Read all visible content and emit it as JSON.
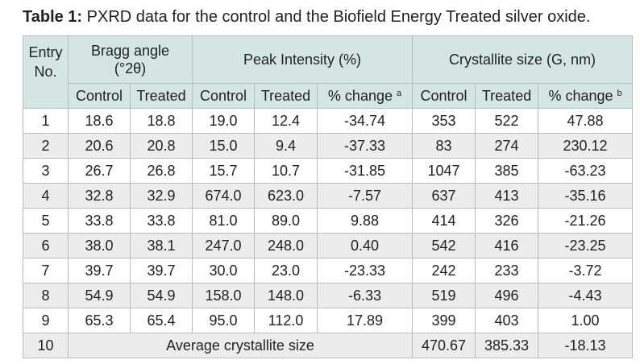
{
  "caption": {
    "label": "Table 1:",
    "text": " PXRD data for the control and the Biofield Energy Treated silver oxide."
  },
  "headers": {
    "entry": "Entry No.",
    "bragg": "Bragg angle (°2θ)",
    "intensity": "Peak Intensity (%)",
    "crystallite": "Crystallite size (G, nm)",
    "control": "Control",
    "treated": "Treated",
    "pct_change": "% change",
    "note_a": "a",
    "note_b": "b"
  },
  "rows": [
    [
      "1",
      "18.6",
      "18.8",
      "19.0",
      "12.4",
      "-34.74",
      "353",
      "522",
      "47.88"
    ],
    [
      "2",
      "20.6",
      "20.8",
      "15.0",
      "9.4",
      "-37.33",
      "83",
      "274",
      "230.12"
    ],
    [
      "3",
      "26.7",
      "26.8",
      "15.7",
      "10.7",
      "-31.85",
      "1047",
      "385",
      "-63.23"
    ],
    [
      "4",
      "32.8",
      "32.9",
      "674.0",
      "623.0",
      "-7.57",
      "637",
      "413",
      "-35.16"
    ],
    [
      "5",
      "33.8",
      "33.8",
      "81.0",
      "89.0",
      "9.88",
      "414",
      "326",
      "-21.26"
    ],
    [
      "6",
      "38.0",
      "38.1",
      "247.0",
      "248.0",
      "0.40",
      "542",
      "416",
      "-23.25"
    ],
    [
      "7",
      "39.7",
      "39.7",
      "30.0",
      "23.0",
      "-23.33",
      "242",
      "233",
      "-3.72"
    ],
    [
      "8",
      "54.9",
      "54.9",
      "158.0",
      "148.0",
      "-6.33",
      "519",
      "496",
      "-4.43"
    ],
    [
      "9",
      "65.3",
      "65.4",
      "95.0",
      "112.0",
      "17.89",
      "399",
      "403",
      "1.00"
    ]
  ],
  "summary": {
    "entry": "10",
    "label": "Average crystallite size",
    "control": "470.67",
    "treated": "385.33",
    "change": "-18.13"
  }
}
